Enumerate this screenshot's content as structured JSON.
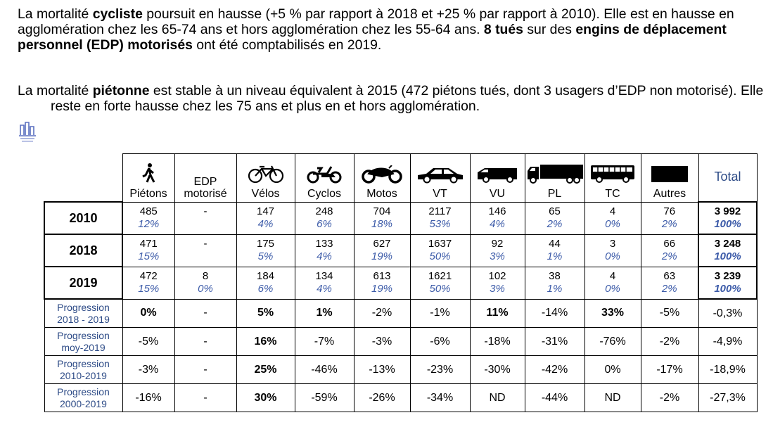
{
  "paragraphs": [
    {
      "runs": [
        {
          "text": "La mortalité "
        },
        {
          "text": "cycliste",
          "bold": true
        },
        {
          "text": " poursuit en hausse (+5 % par rapport à 2018 et +25 % par rapport à 2010). Elle est en hausse en agglomération chez les 65-74 ans et hors agglomération chez les 55-64 ans. "
        },
        {
          "text": "8 tués",
          "bold": true
        },
        {
          "text": " sur des "
        },
        {
          "text": "engins de déplacement personnel (EDP) motorisés",
          "bold": true
        },
        {
          "text": " ont été comptabilisés en 2019."
        }
      ]
    },
    {
      "runs": [
        {
          "text": "La mortalité "
        },
        {
          "text": "piétonne",
          "bold": true
        },
        {
          "text": " est stable à un niveau équivalent à 2015 (472 piétons tués, dont 3 usagers d’EDP non motorisé). Elle reste en forte hausse chez les 75 ans et plus en et hors agglomération."
        }
      ]
    }
  ],
  "table": {
    "columns": [
      "Piétons",
      "EDP motorisé",
      "Vélos",
      "Cyclos",
      "Motos",
      "VT",
      "VU",
      "PL",
      "TC",
      "Autres",
      "Total"
    ],
    "year_rows": [
      {
        "label": "2010",
        "values": [
          "485",
          "-",
          "147",
          "248",
          "704",
          "2117",
          "146",
          "65",
          "4",
          "76",
          "3 992"
        ],
        "shares": [
          "12%",
          null,
          "4%",
          "6%",
          "18%",
          "53%",
          "4%",
          "2%",
          "0%",
          "2%",
          "100%"
        ]
      },
      {
        "label": "2018",
        "values": [
          "471",
          "-",
          "175",
          "133",
          "627",
          "1637",
          "92",
          "44",
          "3",
          "66",
          "3 248"
        ],
        "shares": [
          "15%",
          null,
          "5%",
          "4%",
          "19%",
          "50%",
          "3%",
          "1%",
          "0%",
          "2%",
          "100%"
        ]
      },
      {
        "label": "2019",
        "values": [
          "472",
          "8",
          "184",
          "134",
          "613",
          "1621",
          "102",
          "38",
          "4",
          "63",
          "3 239"
        ],
        "shares": [
          "15%",
          "0%",
          "6%",
          "4%",
          "19%",
          "50%",
          "3%",
          "1%",
          "0%",
          "2%",
          "100%"
        ]
      }
    ],
    "progression_rows": [
      {
        "label": [
          "Progression",
          "2018 - 2019"
        ],
        "values": [
          "0%",
          "-",
          "5%",
          "1%",
          "-2%",
          "-1%",
          "11%",
          "-14%",
          "33%",
          "-5%",
          "-0,3%"
        ],
        "bold": [
          0,
          2,
          3,
          6,
          8
        ]
      },
      {
        "label": [
          "Progression",
          "moy-2019"
        ],
        "values": [
          "-5%",
          "-",
          "16%",
          "-7%",
          "-3%",
          "-6%",
          "-18%",
          "-31%",
          "-76%",
          "-2%",
          "-4,9%"
        ],
        "bold": [
          2
        ]
      },
      {
        "label": [
          "Progression",
          "2010-2019"
        ],
        "values": [
          "-3%",
          "-",
          "25%",
          "-46%",
          "-13%",
          "-23%",
          "-30%",
          "-42%",
          "0%",
          "-17%",
          "-18,9%"
        ],
        "bold": [
          2
        ]
      },
      {
        "label": [
          "Progression",
          "2000-2019"
        ],
        "values": [
          "-16%",
          "-",
          "30%",
          "-59%",
          "-26%",
          "-34%",
          "ND",
          "-44%",
          "ND",
          "-2%",
          "-27,3%"
        ],
        "bold": [
          2
        ]
      }
    ]
  }
}
